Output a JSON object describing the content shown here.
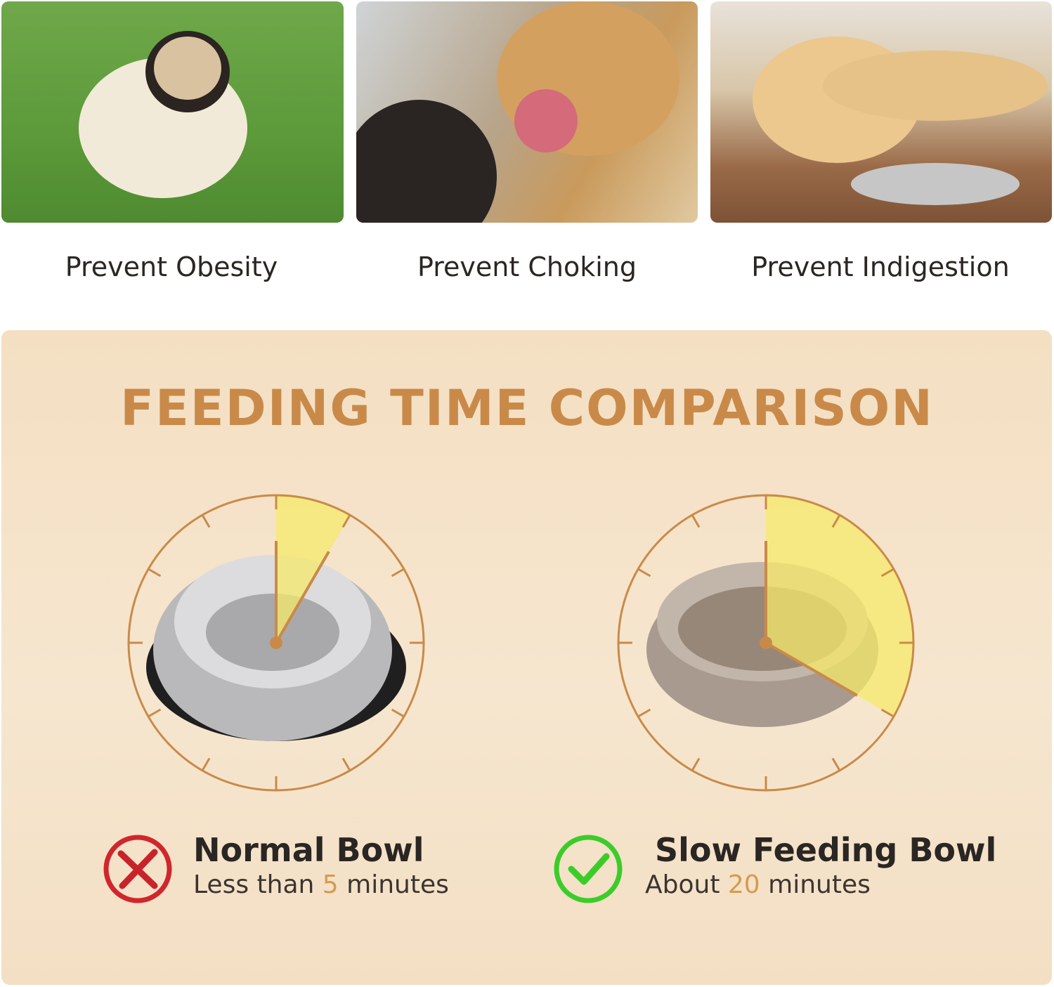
{
  "benefits": [
    {
      "label": "Prevent Obesity",
      "photo": "pug-on-grass"
    },
    {
      "label": "Prevent Choking",
      "photo": "golden-retriever-mouth-check"
    },
    {
      "label": "Prevent Indigestion",
      "photo": "labrador-lying-by-bowl"
    }
  ],
  "comparison": {
    "title": "FEEDING TIME COMPARISON",
    "accent_color": "#c98a49",
    "highlight_color": "#f5ea6a",
    "normal": {
      "name": "Normal Bowl",
      "prefix": "Less than",
      "number": "5",
      "unit": "minutes",
      "minutes_shown": 5,
      "icon": "red-x-icon",
      "icon_color": "#d0262c"
    },
    "slow": {
      "name": "Slow Feeding Bowl",
      "prefix": "About",
      "number": "20",
      "unit": "minutes",
      "minutes_shown": 20,
      "icon": "green-check-icon",
      "icon_color": "#3ccc2a"
    }
  }
}
